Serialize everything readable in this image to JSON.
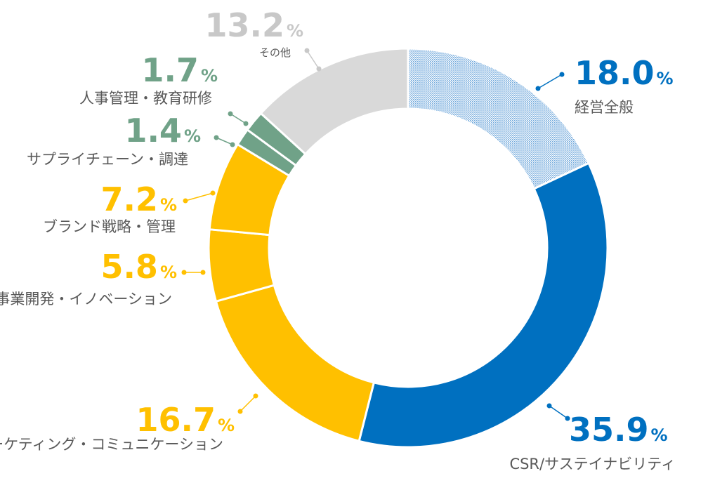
{
  "chart_data": {
    "type": "pie",
    "variant": "donut",
    "unit": "%",
    "slices": [
      {
        "label": "経営全般",
        "value": 18.0,
        "display": "18.0",
        "color": "#0070c0",
        "pattern": "hatched"
      },
      {
        "label": "CSR/サステイナビリティ",
        "value": 35.9,
        "display": "35.9",
        "color": "#0070c0"
      },
      {
        "label": "マーケティング・コミュニケーション",
        "value": 16.7,
        "display": "16.7",
        "color": "#ffc000"
      },
      {
        "label": "事業開発・イノベーション",
        "value": 5.8,
        "display": "5.8",
        "color": "#ffc000"
      },
      {
        "label": "ブランド戦略・管理",
        "value": 7.2,
        "display": "7.2",
        "color": "#ffc000"
      },
      {
        "label": "サプライチェーン・調達",
        "value": 1.4,
        "display": "1.4",
        "color": "#70a288"
      },
      {
        "label": "人事管理・教育研修",
        "value": 1.7,
        "display": "1.7",
        "color": "#70a288"
      },
      {
        "label": "その他",
        "value": 13.2,
        "display": "13.2",
        "color": "#d9d9d9"
      }
    ]
  }
}
